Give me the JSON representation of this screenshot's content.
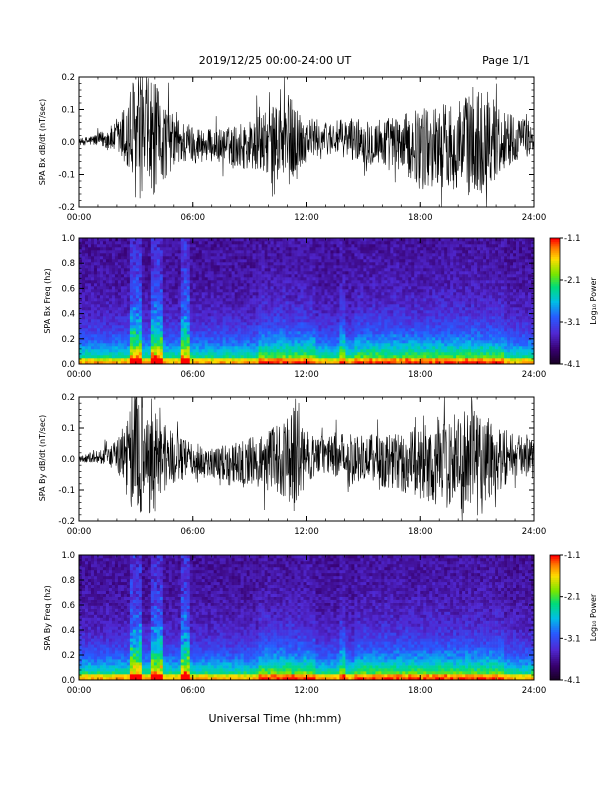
{
  "header": {
    "title": "2019/12/25  00:00-24:00 UT",
    "page": "Page 1/1"
  },
  "xlabel": "Universal Time (hh:mm)",
  "chart_data": [
    {
      "type": "line",
      "ylabel": "SPA Bx dB/dt (nT/sec)",
      "x_range": [
        0,
        24
      ],
      "ylim": [
        -0.2,
        0.2
      ],
      "x_ticks": [
        "00:00",
        "06:00",
        "12:00",
        "18:00",
        "24:00"
      ],
      "y_ticks": [
        "-0.2",
        "-0.1",
        "0.0",
        "0.1",
        "0.2"
      ],
      "series": [
        {
          "x": [
            0,
            1,
            2,
            2.5,
            2.9,
            3.3,
            3.8,
            4.3,
            5,
            6,
            7,
            8,
            9,
            10,
            11,
            11.5,
            12,
            13,
            14,
            15,
            16,
            17,
            18,
            19,
            20,
            21,
            22,
            23,
            24
          ],
          "values": [
            0.01,
            0.02,
            0.05,
            0.12,
            0.2,
            0.16,
            0.2,
            0.14,
            0.08,
            0.06,
            0.05,
            0.06,
            0.08,
            0.1,
            0.15,
            0.11,
            0.07,
            0.05,
            0.06,
            0.07,
            0.08,
            0.09,
            0.12,
            0.13,
            0.14,
            0.18,
            0.12,
            0.07,
            0.05
          ]
        }
      ]
    },
    {
      "type": "heatmap",
      "ylabel": "SPA Bx Freq (hz)",
      "x_range": [
        0,
        24
      ],
      "ylim": [
        0.0,
        1.0
      ],
      "x_ticks": [
        "00:00",
        "06:00",
        "12:00",
        "18:00",
        "24:00"
      ],
      "y_ticks": [
        "0.0",
        "0.2",
        "0.4",
        "0.6",
        "0.8",
        "1.0"
      ],
      "colorbar": {
        "label": "Log₁₀ Power",
        "ticks": [
          "-1.1",
          "-2.1",
          "-3.1",
          "-4.1"
        ],
        "range": [
          -4.1,
          -1.1
        ]
      }
    },
    {
      "type": "line",
      "ylabel": "SPA By dB/dt (nT/sec)",
      "x_range": [
        0,
        24
      ],
      "ylim": [
        -0.2,
        0.2
      ],
      "x_ticks": [
        "00:00",
        "06:00",
        "12:00",
        "18:00",
        "24:00"
      ],
      "y_ticks": [
        "-0.2",
        "-0.1",
        "0.0",
        "0.1",
        "0.2"
      ],
      "series": [
        {
          "x": [
            0,
            1,
            2,
            2.5,
            2.9,
            3.3,
            3.8,
            4.3,
            5,
            6,
            7,
            8,
            9,
            10,
            11,
            11.5,
            12,
            13,
            14,
            15,
            16,
            17,
            18,
            19,
            20,
            21,
            22,
            23,
            24
          ],
          "values": [
            0.01,
            0.02,
            0.05,
            0.14,
            0.2,
            0.2,
            0.2,
            0.15,
            0.08,
            0.06,
            0.05,
            0.06,
            0.08,
            0.1,
            0.13,
            0.2,
            0.08,
            0.06,
            0.08,
            0.08,
            0.09,
            0.1,
            0.12,
            0.14,
            0.16,
            0.2,
            0.12,
            0.07,
            0.05
          ]
        }
      ]
    },
    {
      "type": "heatmap",
      "ylabel": "SPA By Freq (hz)",
      "x_range": [
        0,
        24
      ],
      "ylim": [
        0.0,
        1.0
      ],
      "x_ticks": [
        "00:00",
        "06:00",
        "12:00",
        "18:00",
        "24:00"
      ],
      "y_ticks": [
        "0.0",
        "0.2",
        "0.4",
        "0.6",
        "0.8",
        "1.0"
      ],
      "colorbar": {
        "label": "Log₁₀ Power",
        "ticks": [
          "-1.1",
          "-2.1",
          "-3.1",
          "-4.1"
        ],
        "range": [
          -4.1,
          -1.1
        ]
      }
    }
  ]
}
